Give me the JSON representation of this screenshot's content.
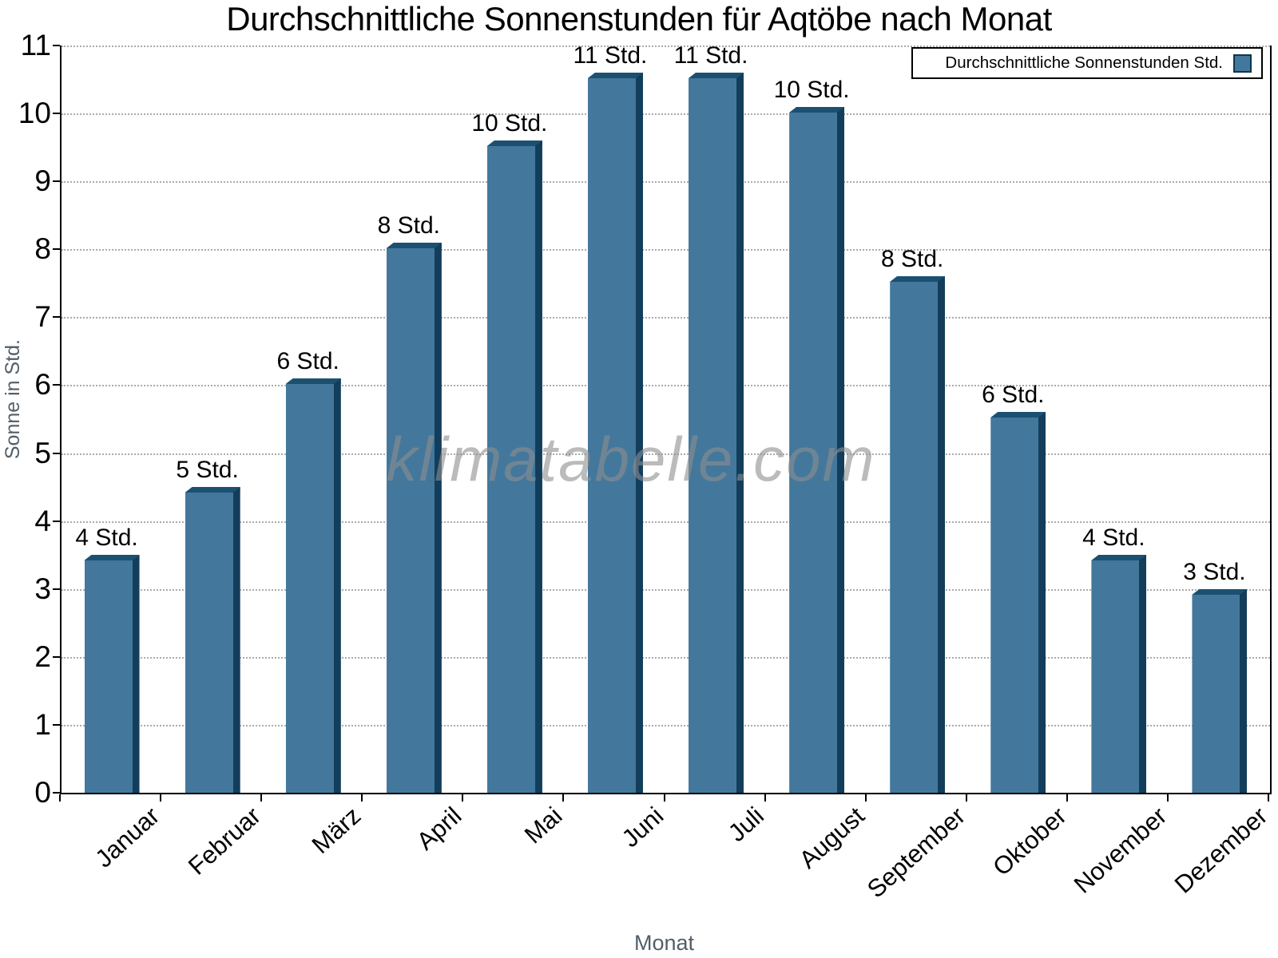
{
  "chart_data": {
    "type": "bar",
    "title": "Durchschnittliche Sonnenstunden für Aqtöbe nach Monat",
    "xlabel": "Monat",
    "ylabel": "Sonne in Std.",
    "watermark": "klimatabelle.com",
    "legend": {
      "label": "Durchschnittliche Sonnenstunden Std.",
      "position": "top-right"
    },
    "categories": [
      "Januar",
      "Februar",
      "März",
      "April",
      "Mai",
      "Juni",
      "Juli",
      "August",
      "September",
      "Oktober",
      "November",
      "Dezember"
    ],
    "values": [
      3.5,
      4.5,
      6.1,
      8.1,
      9.6,
      10.6,
      10.6,
      10.1,
      7.6,
      5.6,
      3.5,
      3.0
    ],
    "bar_labels": [
      "4 Std.",
      "5 Std.",
      "6 Std.",
      "8 Std.",
      "10 Std.",
      "11 Std.",
      "11 Std.",
      "10 Std.",
      "8 Std.",
      "6 Std.",
      "4 Std.",
      "3 Std."
    ],
    "ylim": [
      0,
      11
    ],
    "yticks": [
      0,
      1,
      2,
      3,
      4,
      5,
      6,
      7,
      8,
      9,
      10,
      11
    ],
    "grid": "horizontal-dotted",
    "colors": {
      "bar_face": "#43789C",
      "bar_shadow_right": "#123E5C",
      "bar_shadow_top": "#1C5071",
      "grid": "#ababab",
      "axis_line": "#000000",
      "axis_title": "#525E68",
      "tick_label": "#000000",
      "watermark": "#8F8F8F"
    }
  }
}
